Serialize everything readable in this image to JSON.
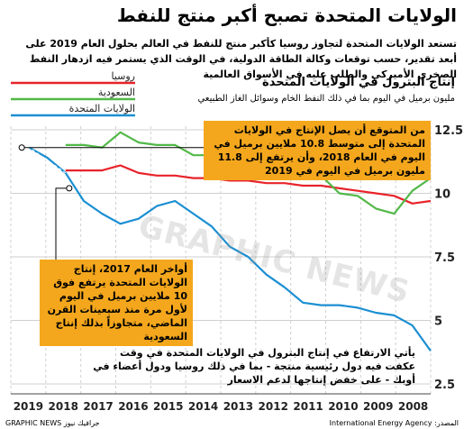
{
  "header": {
    "title": "الولايات المتحدة تصبح أكبر منتج للنفط",
    "intro": "تستعد الولايات المتحدة لتجاوز روسيا كأكبر منتج للنفط في العالم بحلول العام 2019 على أبعد تقدير، حسب توقعات وكالة الطاقة الدولية، في الوقت الذي يستمر فيه ازدهار النفط الصخري الأميركي والطلب عليه في الأسواق العالمية"
  },
  "chart_header": {
    "title": "إنتاج البترول في الولايات المتحدة",
    "unit": "مليون برميل في اليوم بما في ذلك النفط الخام وسوائل الغاز الطبيعي"
  },
  "callouts": {
    "top": "من المتوقع أن يصل الإنتاج في الولايات المتحدة إلى متوسط 10.8 ملايين برميل في اليوم في العام 2018، وأن يرتفع إلى 11.8 مليون برميل في اليوم في 2019",
    "left": "أواخر العام 2017، إنتاج الولايات المتحدة يرتفع فوق 10 ملايين برميل في اليوم لأول مرة منذ سبعينات القرن الماضي، متجاوزاً بذلك إنتاج السعودية"
  },
  "footnote": "يأتي الارتفاع في إنتاج البترول في الولايات المتحدة في وقت عكفت فيه دول رئيسية منتجة - بما في ذلك روسيا ودول أعضاء في أوبك - على خفض إنتاجها لدعم الاسعار",
  "source": "المصدر: International Energy Agency",
  "credit": "جرافيك نيوز GRAPHIC NEWS",
  "watermark": "GRAPHIC NEWS",
  "colors": {
    "russia": "#e8232a",
    "saudi": "#52b848",
    "usa": "#1b8fd2",
    "accent": "#f4a71d"
  },
  "chart_data": {
    "type": "line",
    "x_axis": {
      "labels": [
        "2019",
        "2018",
        "2017",
        "2016",
        "2015",
        "2014",
        "2013",
        "2012",
        "2011",
        "2010",
        "2009",
        "2008"
      ],
      "direction": "right-to-left",
      "range": [
        2008.0,
        2019.5
      ]
    },
    "y_axis": {
      "ticks": [
        2.5,
        5,
        7.5,
        10,
        12.5
      ],
      "range": [
        2.5,
        12.5
      ],
      "position": "right"
    },
    "grid": true,
    "legend_position": "top-left",
    "series": [
      {
        "name": "روسيا",
        "color_key": "russia",
        "x": [
          2008.0,
          2008.5,
          2009.0,
          2009.5,
          2010.0,
          2010.5,
          2011.0,
          2011.5,
          2012.0,
          2012.5,
          2013.0,
          2013.5,
          2014.0,
          2014.5,
          2015.0,
          2015.5,
          2016.0,
          2016.5,
          2017.0,
          2017.5,
          2017.8,
          2018.0
        ],
        "y": [
          9.7,
          9.6,
          9.9,
          10.0,
          10.1,
          10.2,
          10.3,
          10.3,
          10.4,
          10.4,
          10.5,
          10.5,
          10.6,
          10.6,
          10.7,
          10.7,
          10.8,
          11.1,
          10.9,
          10.9,
          10.9,
          10.9
        ]
      },
      {
        "name": "السعودية",
        "color_key": "saudi",
        "x": [
          2008.0,
          2008.5,
          2009.0,
          2009.5,
          2010.0,
          2010.5,
          2011.0,
          2011.5,
          2012.0,
          2012.5,
          2013.0,
          2013.5,
          2014.0,
          2014.5,
          2015.0,
          2015.5,
          2016.0,
          2016.5,
          2017.0,
          2017.5,
          2018.0
        ],
        "y": [
          10.6,
          10.1,
          9.2,
          9.4,
          9.9,
          10.0,
          10.7,
          11.1,
          11.4,
          11.3,
          11.2,
          11.4,
          11.5,
          11.5,
          11.9,
          11.9,
          12.0,
          12.4,
          11.8,
          11.9,
          11.9
        ]
      },
      {
        "name": "الولايات المتحدة",
        "color_key": "usa",
        "x": [
          2008.0,
          2008.5,
          2009.0,
          2009.5,
          2010.0,
          2010.5,
          2011.0,
          2011.5,
          2012.0,
          2012.5,
          2013.0,
          2013.5,
          2014.0,
          2014.5,
          2015.0,
          2015.5,
          2016.0,
          2016.5,
          2017.0,
          2017.5,
          2018.0,
          2018.5,
          2019.0
        ],
        "y": [
          3.8,
          4.8,
          5.2,
          5.3,
          5.5,
          5.6,
          5.6,
          5.7,
          6.3,
          6.8,
          7.5,
          7.9,
          8.7,
          9.2,
          9.7,
          9.5,
          9.0,
          8.8,
          9.2,
          9.7,
          10.8,
          11.4,
          11.8
        ]
      }
    ]
  }
}
